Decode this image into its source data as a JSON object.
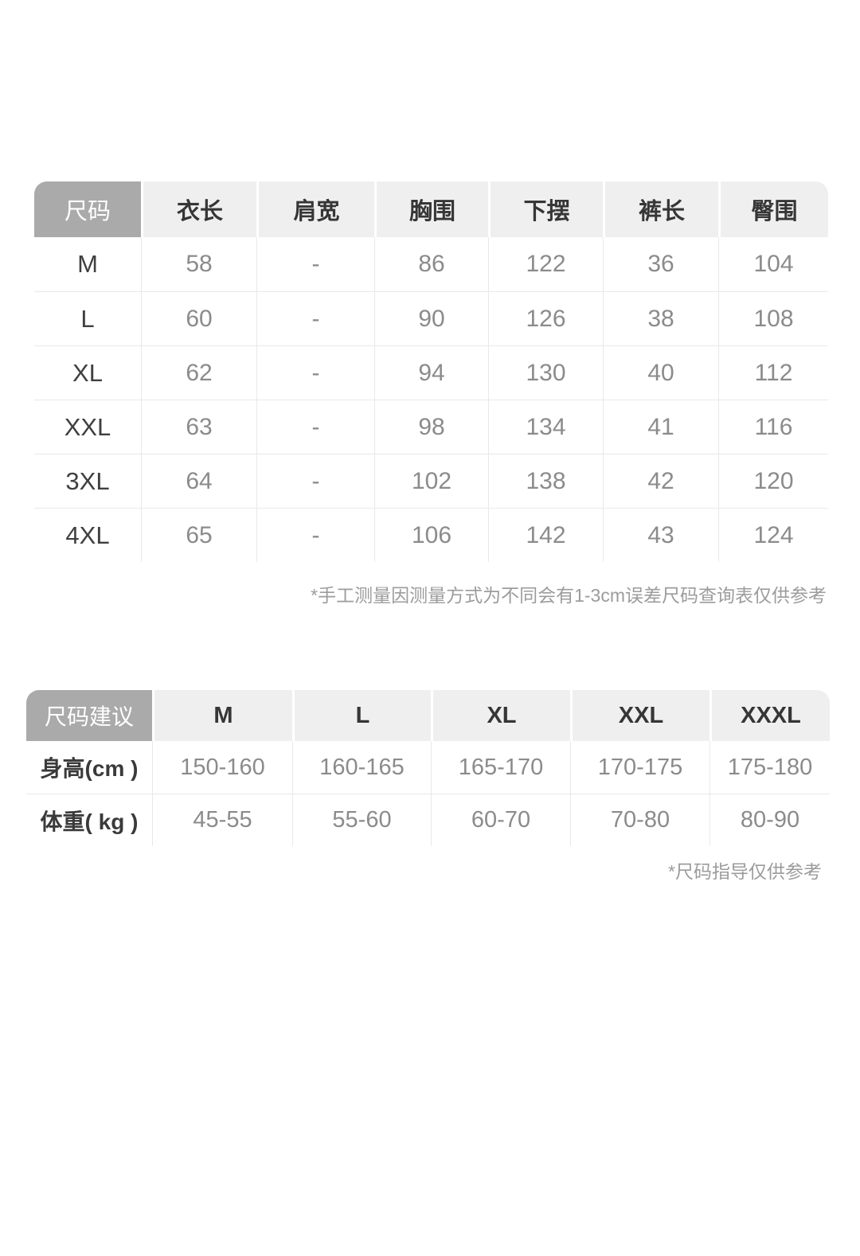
{
  "colors": {
    "page_background": "#ffffff",
    "corner_header_background": "#aaaaaa",
    "corner_header_text": "#ffffff",
    "header_background": "#efefef",
    "header_text": "#363636",
    "value_text": "#8b8b8b",
    "label_text": "#3f3f3f",
    "divider": "#e9e9e9",
    "footnote_text": "#9c9c9c"
  },
  "size_table": {
    "columns": [
      "尺码",
      "衣长",
      "肩宽",
      "胸围",
      "下摆",
      "裤长",
      "臀围"
    ],
    "rows": [
      {
        "label": "M",
        "values": [
          "58",
          "-",
          "86",
          "122",
          "36",
          "104"
        ]
      },
      {
        "label": "L",
        "values": [
          "60",
          "-",
          "90",
          "126",
          "38",
          "108"
        ]
      },
      {
        "label": "XL",
        "values": [
          "62",
          "-",
          "94",
          "130",
          "40",
          "112"
        ]
      },
      {
        "label": "XXL",
        "values": [
          "63",
          "-",
          "98",
          "134",
          "41",
          "116"
        ]
      },
      {
        "label": "3XL",
        "values": [
          "64",
          "-",
          "102",
          "138",
          "42",
          "120"
        ]
      },
      {
        "label": "4XL",
        "values": [
          "65",
          "-",
          "106",
          "142",
          "43",
          "124"
        ]
      }
    ],
    "footnote": "*手工测量因测量方式为不同会有1-3cm误差尺码查询表仅供参考"
  },
  "suggestion_table": {
    "columns": [
      "尺码建议",
      "M",
      "L",
      "XL",
      "XXL",
      "XXXL"
    ],
    "rows": [
      {
        "label": "身高(cm )",
        "values": [
          "150-160",
          "160-165",
          "165-170",
          "170-175",
          "175-180"
        ]
      },
      {
        "label": "体重( kg )",
        "values": [
          "45-55",
          "55-60",
          "60-70",
          "70-80",
          "80-90"
        ]
      }
    ],
    "footnote": "*尺码指导仅供参考"
  },
  "chart_data": [
    {
      "type": "table",
      "title": "尺码表 (garment measurements, cm)",
      "columns": [
        "尺码",
        "衣长",
        "肩宽",
        "胸围",
        "下摆",
        "裤长",
        "臀围"
      ],
      "rows": [
        [
          "M",
          "58",
          "-",
          "86",
          "122",
          "36",
          "104"
        ],
        [
          "L",
          "60",
          "-",
          "90",
          "126",
          "38",
          "108"
        ],
        [
          "XL",
          "62",
          "-",
          "94",
          "130",
          "40",
          "112"
        ],
        [
          "XXL",
          "63",
          "-",
          "98",
          "134",
          "41",
          "116"
        ],
        [
          "3XL",
          "64",
          "-",
          "102",
          "138",
          "42",
          "120"
        ],
        [
          "4XL",
          "65",
          "-",
          "106",
          "142",
          "43",
          "124"
        ]
      ],
      "annotations": [
        "*手工测量因测量方式为不同会有1-3cm误差尺码查询表仅供参考"
      ]
    },
    {
      "type": "table",
      "title": "尺码建议 (size recommendation)",
      "columns": [
        "尺码建议",
        "M",
        "L",
        "XL",
        "XXL",
        "XXXL"
      ],
      "rows": [
        [
          "身高(cm )",
          "150-160",
          "160-165",
          "165-170",
          "170-175",
          "175-180"
        ],
        [
          "体重( kg )",
          "45-55",
          "55-60",
          "60-70",
          "70-80",
          "80-90"
        ]
      ],
      "annotations": [
        "*尺码指导仅供参考"
      ]
    }
  ]
}
